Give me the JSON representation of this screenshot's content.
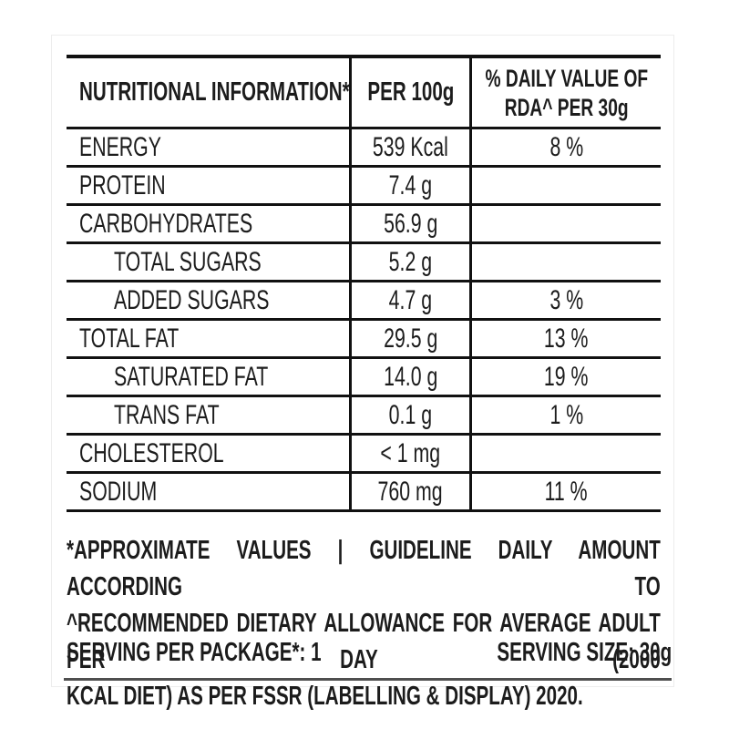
{
  "table": {
    "header": {
      "col1": "NUTRITIONAL INFORMATION*",
      "col2": "PER 100g",
      "col3_line1": "% DAILY VALUE OF",
      "col3_line2": "RDA^ PER 30g"
    },
    "rows": [
      {
        "label": "ENERGY",
        "per100g": "539 Kcal",
        "dv": "8 %"
      },
      {
        "label": "PROTEIN",
        "per100g": "7.4 g",
        "dv": ""
      },
      {
        "label": "CARBOHYDRATES",
        "per100g": "56.9 g",
        "dv": ""
      },
      {
        "label": "TOTAL SUGARS",
        "per100g": "5.2 g",
        "dv": ""
      },
      {
        "label": "ADDED SUGARS",
        "per100g": "4.7 g",
        "dv": "3 %"
      },
      {
        "label": "TOTAL FAT",
        "per100g": "29.5 g",
        "dv": "13 %"
      },
      {
        "label": "SATURATED FAT",
        "per100g": "14.0 g",
        "dv": "19 %"
      },
      {
        "label": "TRANS FAT",
        "per100g": "0.1 g",
        "dv": "1 %"
      },
      {
        "label": "CHOLESTEROL",
        "per100g": "< 1 mg",
        "dv": ""
      },
      {
        "label": "SODIUM",
        "per100g": "760 mg",
        "dv": "11 %"
      }
    ]
  },
  "footnote": {
    "lines": [
      "*APPROXIMATE VALUES | GUIDELINE DAILY AMOUNT ACCORDING TO",
      "^RECOMMENDED DIETARY ALLOWANCE FOR AVERAGE ADULT PER DAY (2000",
      "KCAL DIET) AS PER FSSR (LABELLING & DISPLAY) 2020."
    ]
  },
  "serving": {
    "per_package": "SERVING PER PACKAGE*: 1",
    "size": "SERVING SIZE: 30g"
  },
  "colors": {
    "text": "#1c1c1c",
    "table_rule": "#111111",
    "bottom_rule": "#4f4f4f",
    "card_edge": "#ededed"
  }
}
